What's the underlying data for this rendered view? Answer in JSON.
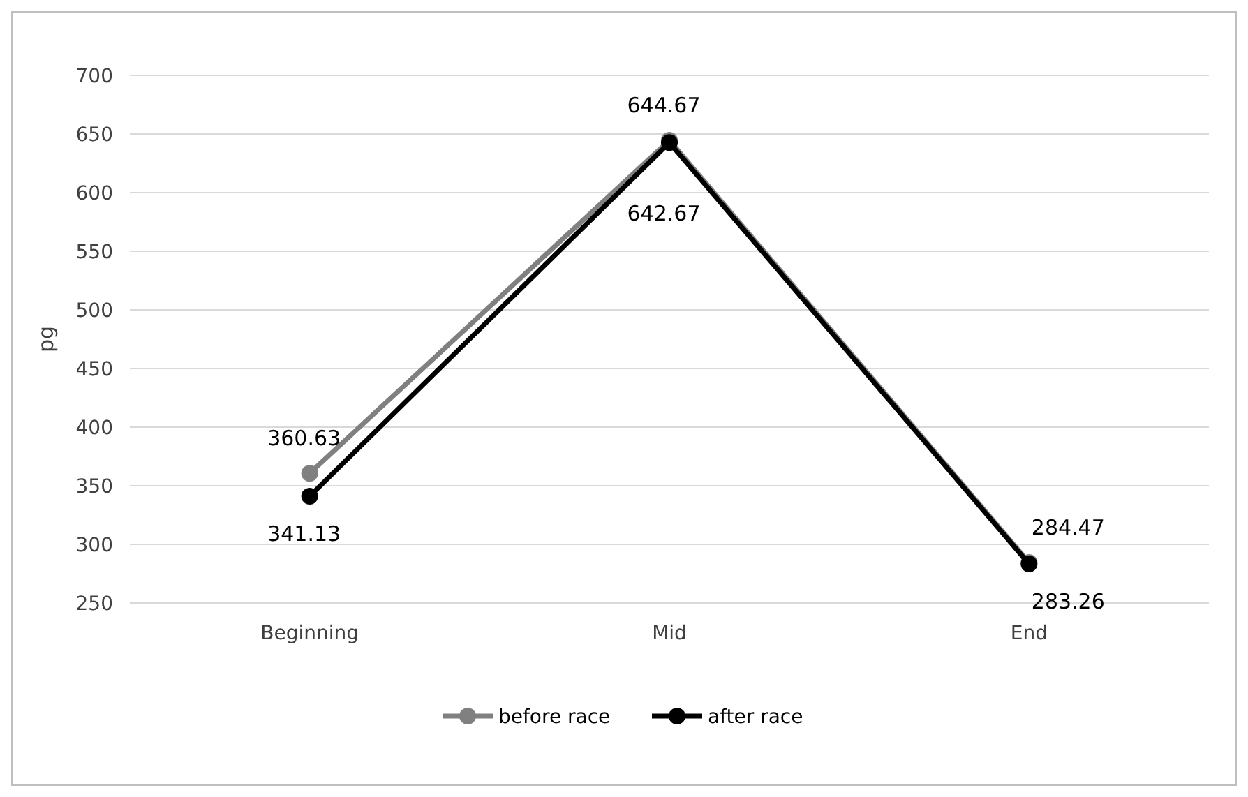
{
  "chart_data": {
    "type": "line",
    "ylabel": "pg",
    "categories": [
      "Beginning",
      "Mid",
      "End"
    ],
    "series": [
      {
        "name": "before race",
        "color": "#808080",
        "values": [
          360.63,
          644.67,
          284.47
        ]
      },
      {
        "name": "after race",
        "color": "#000000",
        "values": [
          341.13,
          642.67,
          283.26
        ]
      }
    ],
    "ylim": [
      250,
      700
    ],
    "yticks": [
      250,
      300,
      350,
      400,
      450,
      500,
      550,
      600,
      650,
      700
    ],
    "grid": "y",
    "legend": "bottom",
    "marker": "circle",
    "line_style": "solid",
    "data_labels": true
  }
}
